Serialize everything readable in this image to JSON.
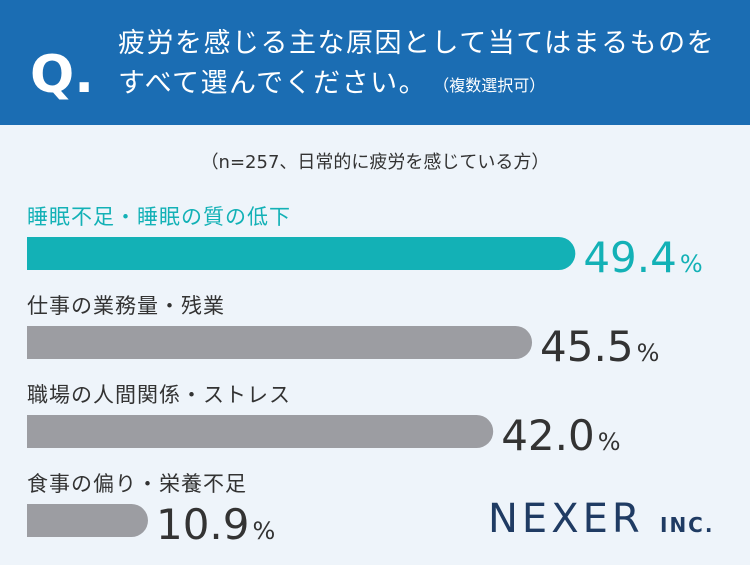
{
  "chart_data": {
    "type": "hbar",
    "badge": "Q.",
    "title": [
      "疲労を感じる主な原因として当てはまるものを",
      "すべて選んでください。"
    ],
    "title_note": "（複数選択可）",
    "subtitle": "（n=257、日常的に疲労を感じている方）",
    "categories": [
      "睡眠不足・睡眠の質の低下",
      "仕事の業務量・残業",
      "職場の人間関係・ストレス",
      "食事の偏り・栄養不足"
    ],
    "values": [
      49.4,
      45.5,
      42.0,
      10.9
    ],
    "value_labels": [
      "49.4%",
      "45.5%",
      "42.0%",
      "10.9%"
    ],
    "colors": [
      "#13b1b6",
      "#9c9da2",
      "#9c9da2",
      "#9c9da2"
    ],
    "label_colors": [
      "#13b1b6",
      "#333333",
      "#333333",
      "#333333"
    ],
    "logo": {
      "name": "NEXER",
      "suffix": "INC."
    }
  }
}
